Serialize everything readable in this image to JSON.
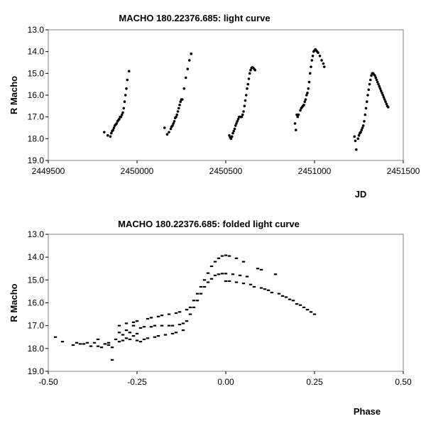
{
  "chart_data": [
    {
      "type": "scatter",
      "title": "MACHO 180.22376.685: light curve",
      "xlabel": "JD",
      "ylabel": "R Macho",
      "xlim": [
        2449500,
        2451500
      ],
      "ylim": [
        13.0,
        19.0
      ],
      "y_inverted": true,
      "grid": false,
      "x_ticks": [
        "2449500",
        "2450000",
        "2450500",
        "2451000",
        "2451500"
      ],
      "y_ticks": [
        "13.0",
        "14.0",
        "15.0",
        "16.0",
        "17.0",
        "18.0",
        "19.0"
      ],
      "x_tick_values": [
        2449500,
        2450000,
        2450500,
        2451000,
        2451500
      ],
      "y_tick_values": [
        13,
        14,
        15,
        16,
        17,
        18,
        19
      ],
      "marker_color": "#000000",
      "points": [
        [
          2449815,
          17.7
        ],
        [
          2449835,
          17.85
        ],
        [
          2449850,
          17.9
        ],
        [
          2449855,
          17.75
        ],
        [
          2449860,
          17.65
        ],
        [
          2449865,
          17.6
        ],
        [
          2449870,
          17.5
        ],
        [
          2449875,
          17.4
        ],
        [
          2449880,
          17.35
        ],
        [
          2449885,
          17.3
        ],
        [
          2449890,
          17.2
        ],
        [
          2449895,
          17.15
        ],
        [
          2449900,
          17.1
        ],
        [
          2449905,
          17.0
        ],
        [
          2449910,
          17.0
        ],
        [
          2449915,
          16.9
        ],
        [
          2449920,
          16.8
        ],
        [
          2449925,
          16.6
        ],
        [
          2449930,
          16.3
        ],
        [
          2449935,
          16.0
        ],
        [
          2449940,
          15.7
        ],
        [
          2449945,
          15.3
        ],
        [
          2449955,
          14.9
        ],
        [
          2450155,
          17.5
        ],
        [
          2450170,
          17.8
        ],
        [
          2450180,
          17.7
        ],
        [
          2450190,
          17.55
        ],
        [
          2450195,
          17.45
        ],
        [
          2450200,
          17.4
        ],
        [
          2450205,
          17.3
        ],
        [
          2450210,
          17.2
        ],
        [
          2450215,
          17.05
        ],
        [
          2450220,
          17.0
        ],
        [
          2450225,
          16.9
        ],
        [
          2450230,
          16.75
        ],
        [
          2450235,
          16.6
        ],
        [
          2450240,
          16.45
        ],
        [
          2450245,
          16.3
        ],
        [
          2450250,
          16.2
        ],
        [
          2450255,
          16.2
        ],
        [
          2450265,
          15.7
        ],
        [
          2450275,
          15.2
        ],
        [
          2450285,
          14.8
        ],
        [
          2450295,
          14.4
        ],
        [
          2450305,
          14.1
        ],
        [
          2450520,
          17.85
        ],
        [
          2450525,
          17.95
        ],
        [
          2450530,
          18.0
        ],
        [
          2450535,
          17.9
        ],
        [
          2450540,
          17.75
        ],
        [
          2450545,
          17.65
        ],
        [
          2450550,
          17.55
        ],
        [
          2450555,
          17.4
        ],
        [
          2450560,
          17.3
        ],
        [
          2450565,
          17.2
        ],
        [
          2450570,
          17.1
        ],
        [
          2450575,
          17.0
        ],
        [
          2450580,
          17.0
        ],
        [
          2450585,
          17.0
        ],
        [
          2450590,
          17.0
        ],
        [
          2450595,
          16.9
        ],
        [
          2450600,
          16.75
        ],
        [
          2450605,
          16.5
        ],
        [
          2450610,
          16.25
        ],
        [
          2450615,
          16.0
        ],
        [
          2450620,
          15.7
        ],
        [
          2450625,
          15.5
        ],
        [
          2450630,
          15.25
        ],
        [
          2450635,
          15.0
        ],
        [
          2450640,
          14.85
        ],
        [
          2450645,
          14.75
        ],
        [
          2450650,
          14.72
        ],
        [
          2450655,
          14.75
        ],
        [
          2450660,
          14.8
        ],
        [
          2450665,
          14.85
        ],
        [
          2450890,
          17.3
        ],
        [
          2450895,
          17.6
        ],
        [
          2450900,
          16.9
        ],
        [
          2450905,
          17.0
        ],
        [
          2450910,
          16.9
        ],
        [
          2450920,
          16.7
        ],
        [
          2450925,
          16.6
        ],
        [
          2450930,
          16.55
        ],
        [
          2450935,
          16.5
        ],
        [
          2450940,
          16.45
        ],
        [
          2450945,
          16.3
        ],
        [
          2450950,
          16.2
        ],
        [
          2450955,
          16.0
        ],
        [
          2450960,
          15.9
        ],
        [
          2450965,
          15.7
        ],
        [
          2450970,
          15.4
        ],
        [
          2450975,
          15.0
        ],
        [
          2450980,
          14.7
        ],
        [
          2450985,
          14.4
        ],
        [
          2450990,
          14.2
        ],
        [
          2450995,
          14.0
        ],
        [
          2451000,
          13.95
        ],
        [
          2451005,
          13.9
        ],
        [
          2451010,
          13.95
        ],
        [
          2451015,
          14.0
        ],
        [
          2451020,
          14.05
        ],
        [
          2451030,
          14.2
        ],
        [
          2451040,
          14.4
        ],
        [
          2451050,
          14.55
        ],
        [
          2451055,
          14.7
        ],
        [
          2451225,
          17.9
        ],
        [
          2451230,
          18.1
        ],
        [
          2451235,
          18.5
        ],
        [
          2451245,
          18.0
        ],
        [
          2451250,
          17.85
        ],
        [
          2451255,
          17.75
        ],
        [
          2451260,
          17.7
        ],
        [
          2451265,
          17.6
        ],
        [
          2451270,
          17.5
        ],
        [
          2451275,
          17.4
        ],
        [
          2451280,
          17.2
        ],
        [
          2451285,
          16.9
        ],
        [
          2451290,
          16.6
        ],
        [
          2451295,
          16.3
        ],
        [
          2451300,
          16.0
        ],
        [
          2451305,
          15.75
        ],
        [
          2451310,
          15.5
        ],
        [
          2451315,
          15.3
        ],
        [
          2451320,
          15.1
        ],
        [
          2451325,
          15.0
        ],
        [
          2451330,
          15.0
        ],
        [
          2451335,
          15.05
        ],
        [
          2451340,
          15.1
        ],
        [
          2451345,
          15.2
        ],
        [
          2451350,
          15.3
        ],
        [
          2451355,
          15.4
        ],
        [
          2451360,
          15.5
        ],
        [
          2451365,
          15.6
        ],
        [
          2451370,
          15.7
        ],
        [
          2451375,
          15.8
        ],
        [
          2451380,
          15.9
        ],
        [
          2451385,
          16.0
        ],
        [
          2451390,
          16.1
        ],
        [
          2451395,
          16.2
        ],
        [
          2451400,
          16.3
        ],
        [
          2451405,
          16.4
        ],
        [
          2451410,
          16.5
        ],
        [
          2451415,
          16.55
        ]
      ]
    },
    {
      "type": "scatter",
      "title": "MACHO 180.22376.685: folded light curve",
      "xlabel": "Phase",
      "ylabel": "R Macho",
      "xlim": [
        -0.5,
        0.5
      ],
      "ylim": [
        13.0,
        19.0
      ],
      "y_inverted": true,
      "grid": false,
      "x_ticks": [
        "-0.50",
        "-0.25",
        "0.00",
        "0.25",
        "0.50"
      ],
      "y_ticks": [
        "13.0",
        "14.0",
        "15.0",
        "16.0",
        "17.0",
        "18.0",
        "19.0"
      ],
      "x_tick_values": [
        -0.5,
        -0.25,
        0.0,
        0.25,
        0.5
      ],
      "y_tick_values": [
        13,
        14,
        15,
        16,
        17,
        18,
        19
      ],
      "marker_color": "#000000",
      "points": [
        [
          -0.48,
          17.5
        ],
        [
          -0.46,
          17.7
        ],
        [
          -0.43,
          17.85
        ],
        [
          -0.42,
          17.75
        ],
        [
          -0.41,
          17.8
        ],
        [
          -0.4,
          17.8
        ],
        [
          -0.39,
          17.75
        ],
        [
          -0.38,
          17.9
        ],
        [
          -0.37,
          17.75
        ],
        [
          -0.36,
          17.6
        ],
        [
          -0.36,
          17.9
        ],
        [
          -0.35,
          17.95
        ],
        [
          -0.34,
          17.8
        ],
        [
          -0.33,
          17.85
        ],
        [
          -0.33,
          17.75
        ],
        [
          -0.32,
          18.5
        ],
        [
          -0.32,
          17.95
        ],
        [
          -0.31,
          17.6
        ],
        [
          -0.3,
          17.3
        ],
        [
          -0.3,
          17.7
        ],
        [
          -0.3,
          17.0
        ],
        [
          -0.29,
          17.4
        ],
        [
          -0.29,
          17.65
        ],
        [
          -0.28,
          17.2
        ],
        [
          -0.28,
          17.55
        ],
        [
          -0.28,
          16.9
        ],
        [
          -0.27,
          17.3
        ],
        [
          -0.27,
          17.6
        ],
        [
          -0.26,
          17.45
        ],
        [
          -0.26,
          17.0
        ],
        [
          -0.26,
          16.85
        ],
        [
          -0.25,
          17.35
        ],
        [
          -0.25,
          17.65
        ],
        [
          -0.25,
          16.8
        ],
        [
          -0.24,
          17.1
        ],
        [
          -0.24,
          17.7
        ],
        [
          -0.23,
          17.05
        ],
        [
          -0.23,
          17.6
        ],
        [
          -0.22,
          16.7
        ],
        [
          -0.22,
          17.55
        ],
        [
          -0.21,
          17.05
        ],
        [
          -0.21,
          16.65
        ],
        [
          -0.2,
          17.5
        ],
        [
          -0.2,
          17.0
        ],
        [
          -0.19,
          16.6
        ],
        [
          -0.19,
          17.45
        ],
        [
          -0.18,
          17.0
        ],
        [
          -0.18,
          16.55
        ],
        [
          -0.17,
          17.4
        ],
        [
          -0.16,
          17.0
        ],
        [
          -0.16,
          16.5
        ],
        [
          -0.15,
          17.35
        ],
        [
          -0.15,
          17.0
        ],
        [
          -0.14,
          16.45
        ],
        [
          -0.14,
          17.3
        ],
        [
          -0.13,
          16.95
        ],
        [
          -0.13,
          16.4
        ],
        [
          -0.12,
          17.2
        ],
        [
          -0.12,
          16.9
        ],
        [
          -0.11,
          16.3
        ],
        [
          -0.11,
          16.8
        ],
        [
          -0.1,
          16.2
        ],
        [
          -0.1,
          16.5
        ],
        [
          -0.09,
          15.9
        ],
        [
          -0.09,
          16.2
        ],
        [
          -0.08,
          15.6
        ],
        [
          -0.08,
          15.9
        ],
        [
          -0.07,
          15.3
        ],
        [
          -0.07,
          15.6
        ],
        [
          -0.06,
          15.0
        ],
        [
          -0.06,
          15.3
        ],
        [
          -0.05,
          14.7
        ],
        [
          -0.05,
          15.1
        ],
        [
          -0.04,
          14.4
        ],
        [
          -0.04,
          14.95
        ],
        [
          -0.03,
          14.2
        ],
        [
          -0.03,
          14.8
        ],
        [
          -0.02,
          14.05
        ],
        [
          -0.02,
          14.75
        ],
        [
          -0.01,
          13.95
        ],
        [
          -0.01,
          14.72
        ],
        [
          0.0,
          13.92
        ],
        [
          0.0,
          15.05
        ],
        [
          0.0,
          14.72
        ],
        [
          0.01,
          13.95
        ],
        [
          0.01,
          15.05
        ],
        [
          0.02,
          14.75
        ],
        [
          0.03,
          14.05
        ],
        [
          0.03,
          15.1
        ],
        [
          0.04,
          14.8
        ],
        [
          0.05,
          14.2
        ],
        [
          0.05,
          15.15
        ],
        [
          0.06,
          14.85
        ],
        [
          0.07,
          15.2
        ],
        [
          0.08,
          15.3
        ],
        [
          0.09,
          14.5
        ],
        [
          0.1,
          14.55
        ],
        [
          0.1,
          15.35
        ],
        [
          0.11,
          15.4
        ],
        [
          0.12,
          15.45
        ],
        [
          0.13,
          15.55
        ],
        [
          0.14,
          14.75
        ],
        [
          0.15,
          15.6
        ],
        [
          0.16,
          15.7
        ],
        [
          0.17,
          15.75
        ],
        [
          0.18,
          15.85
        ],
        [
          0.19,
          15.9
        ],
        [
          0.2,
          16.05
        ],
        [
          0.21,
          16.1
        ],
        [
          0.22,
          16.2
        ],
        [
          0.23,
          16.3
        ],
        [
          0.24,
          16.4
        ],
        [
          0.25,
          16.5
        ]
      ]
    }
  ]
}
